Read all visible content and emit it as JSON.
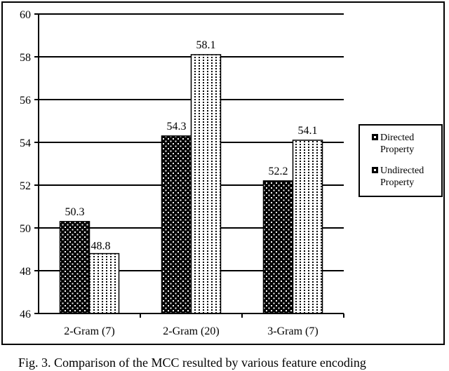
{
  "chart_data": {
    "type": "bar",
    "title": "",
    "xlabel": "",
    "ylabel": "",
    "categories": [
      "2-Gram (7)",
      "2-Gram (20)",
      "3-Gram (7)"
    ],
    "series": [
      {
        "name": "Directed Property",
        "values": [
          50.3,
          54.3,
          52.2
        ]
      },
      {
        "name": "Undirected Property",
        "values": [
          48.8,
          58.1,
          54.1
        ]
      }
    ],
    "ylim": [
      46,
      60
    ],
    "yticks": [
      46,
      48,
      50,
      52,
      54,
      56,
      58,
      60
    ],
    "grid": true,
    "legend_position": "right",
    "data_labels": [
      "50.3",
      "48.8",
      "54.3",
      "58.1",
      "52.2",
      "54.1"
    ]
  },
  "legend": {
    "items": [
      {
        "line1": "Directed",
        "line2": "Property"
      },
      {
        "line1": "Undirected",
        "line2": "Property"
      }
    ]
  },
  "caption": "Fig. 3.   Comparison of the MCC resulted by various feature encoding"
}
